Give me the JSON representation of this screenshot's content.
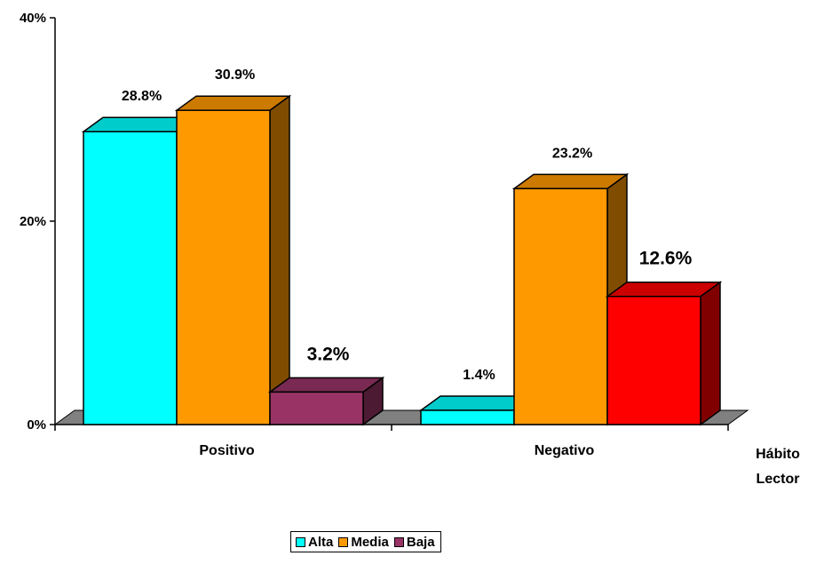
{
  "chart_data": {
    "type": "bar",
    "categories": [
      "Positivo",
      "Negativo"
    ],
    "xlabel": "Hábito Lector",
    "ylabel": "",
    "ylim": [
      0,
      40
    ],
    "yticks": [
      "0%",
      "20%",
      "40%"
    ],
    "grid": false,
    "legend_position": "bottom",
    "bars": [
      {
        "category": "Positivo",
        "series": "Alta",
        "value": 28.8,
        "label": "28.8%"
      },
      {
        "category": "Positivo",
        "series": "Media",
        "value": 30.9,
        "label": "30.9%"
      },
      {
        "category": "Positivo",
        "series": "Baja",
        "value": 3.2,
        "label": "3.2%"
      },
      {
        "category": "Negativo",
        "series": "Alta",
        "value": 1.4,
        "label": "1.4%"
      },
      {
        "category": "Negativo",
        "series": "Media",
        "value": 23.2,
        "label": "23.2%"
      },
      {
        "category": "Negativo",
        "series": "Baja",
        "value": 12.6,
        "label": "12.6%"
      }
    ],
    "series": [
      {
        "name": "Alta",
        "color": "#00FFFF"
      },
      {
        "name": "Media",
        "color": "#FF9900"
      },
      {
        "name": "Baja",
        "color": "#993366"
      }
    ],
    "point_colors": {
      "Negativo-Baja": "#FF0000"
    }
  },
  "legend": {
    "items": [
      {
        "label": "Alta",
        "color": "#00FFFF"
      },
      {
        "label": "Media",
        "color": "#FF9900"
      },
      {
        "label": "Baja",
        "color": "#993366"
      }
    ]
  }
}
